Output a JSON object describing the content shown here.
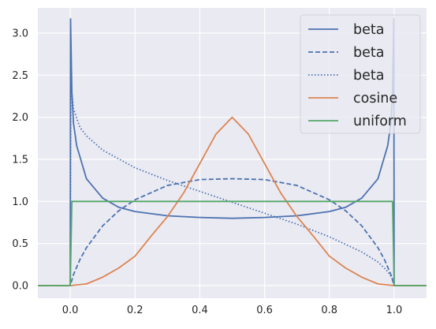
{
  "chart_data": {
    "type": "line",
    "title": "",
    "xlabel": "",
    "ylabel": "",
    "xlim": [
      -0.1,
      1.1
    ],
    "ylim": [
      -0.15,
      3.3
    ],
    "grid": true,
    "legend_position": "top-right",
    "background": "#EAEAF2",
    "x_ticks": [
      0.0,
      0.2,
      0.4,
      0.6,
      0.8,
      1.0
    ],
    "x_tick_labels": [
      "0.0",
      "0.2",
      "0.4",
      "0.6",
      "0.8",
      "1.0"
    ],
    "y_ticks": [
      0.0,
      0.5,
      1.0,
      1.5,
      2.0,
      2.5,
      3.0
    ],
    "y_tick_labels": [
      "0.0",
      "0.5",
      "1.0",
      "1.5",
      "2.0",
      "2.5",
      "3.0"
    ],
    "series": [
      {
        "name": "beta",
        "color": "#4C72B0",
        "style": "solid",
        "x": [
          -0.1,
          0.0,
          0.001,
          0.005,
          0.01,
          0.02,
          0.05,
          0.1,
          0.15,
          0.2,
          0.3,
          0.4,
          0.5,
          0.6,
          0.7,
          0.8,
          0.85,
          0.9,
          0.95,
          0.98,
          0.99,
          0.995,
          0.999,
          1.0,
          1.1
        ],
        "y": [
          0.0,
          0.0,
          3.17,
          2.3,
          1.93,
          1.66,
          1.27,
          1.04,
          0.93,
          0.88,
          0.83,
          0.81,
          0.8,
          0.81,
          0.83,
          0.88,
          0.93,
          1.04,
          1.27,
          1.66,
          1.93,
          2.3,
          3.17,
          0.0,
          0.0
        ]
      },
      {
        "name": "beta",
        "color": "#4C72B0",
        "style": "dashed",
        "x": [
          -0.1,
          0.0,
          0.01,
          0.03,
          0.05,
          0.1,
          0.15,
          0.2,
          0.3,
          0.4,
          0.5,
          0.6,
          0.7,
          0.8,
          0.85,
          0.9,
          0.95,
          0.97,
          0.99,
          1.0,
          1.1
        ],
        "y": [
          0.0,
          0.0,
          0.13,
          0.31,
          0.45,
          0.71,
          0.89,
          1.02,
          1.19,
          1.26,
          1.27,
          1.26,
          1.19,
          1.02,
          0.89,
          0.71,
          0.45,
          0.31,
          0.13,
          0.0,
          0.0
        ]
      },
      {
        "name": "beta",
        "color": "#4C72B0",
        "style": "dotted",
        "x": [
          -0.1,
          0.0,
          0.002,
          0.01,
          0.03,
          0.05,
          0.1,
          0.2,
          0.3,
          0.4,
          0.5,
          0.6,
          0.7,
          0.8,
          0.9,
          0.95,
          0.98,
          0.995,
          1.0,
          1.1
        ],
        "y": [
          0.0,
          0.0,
          2.4,
          2.1,
          1.88,
          1.78,
          1.61,
          1.4,
          1.25,
          1.12,
          0.99,
          0.86,
          0.73,
          0.58,
          0.4,
          0.28,
          0.17,
          0.08,
          0.0,
          0.0
        ]
      },
      {
        "name": "cosine",
        "color": "#DD8452",
        "style": "solid",
        "x": [
          -0.1,
          0.0,
          0.05,
          0.1,
          0.15,
          0.2,
          0.25,
          0.3,
          0.35,
          0.4,
          0.45,
          0.5,
          0.55,
          0.6,
          0.65,
          0.7,
          0.75,
          0.8,
          0.85,
          0.9,
          0.95,
          1.0,
          1.1
        ],
        "y": [
          0.0,
          0.0,
          0.02,
          0.1,
          0.21,
          0.35,
          0.59,
          0.82,
          1.1,
          1.45,
          1.8,
          2.0,
          1.8,
          1.45,
          1.1,
          0.82,
          0.59,
          0.35,
          0.21,
          0.1,
          0.02,
          0.0,
          0.0
        ]
      },
      {
        "name": "uniform",
        "color": "#55A868",
        "style": "solid",
        "x": [
          -0.1,
          0.0,
          0.005,
          0.995,
          1.0,
          1.1
        ],
        "y": [
          0.0,
          0.0,
          1.0,
          1.0,
          0.0,
          0.0
        ]
      }
    ]
  }
}
